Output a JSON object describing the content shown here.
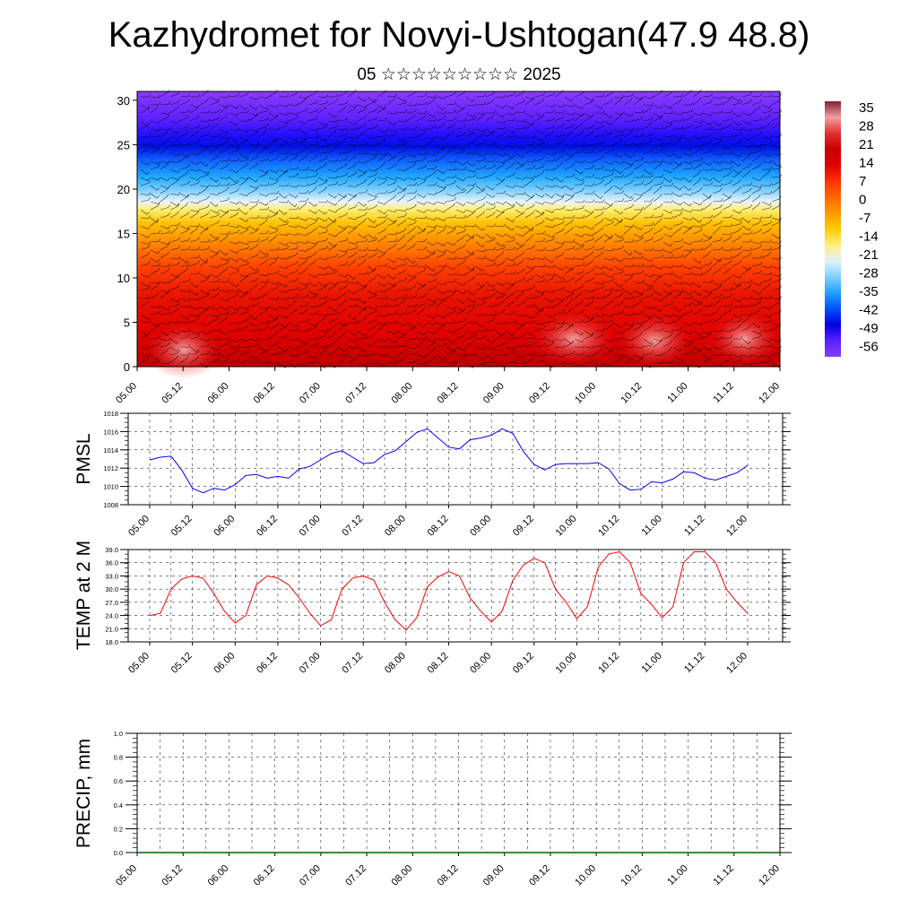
{
  "title": "Kazhydromet for Novyi-Ushtogan(47.9 48.8)",
  "subtitle": "05 ☆☆☆☆☆☆☆☆☆ 2025",
  "colors": {
    "pmsl_line": "#0000ff",
    "temp_line": "#ff0000",
    "precip_line": "#006400",
    "colorbar": [
      "#7f1f2f",
      "#f2a0a0",
      "#e23030",
      "#c80000",
      "#e00000",
      "#ff3300",
      "#ff6600",
      "#ff9900",
      "#ffcc00",
      "#fff080",
      "#e0f0ff",
      "#80d0ff",
      "#20a0ff",
      "#0050ff",
      "#0000e0",
      "#6020ff",
      "#8040ff"
    ]
  },
  "x_ticks": [
    "05.00",
    "05.12",
    "06.00",
    "06.12",
    "07.00",
    "07.12",
    "08.00",
    "08.12",
    "09.00",
    "09.12",
    "10.00",
    "10.12",
    "11.00",
    "11.12",
    "12.00"
  ],
  "chart_data": [
    {
      "type": "heatmap",
      "title": "",
      "xlabel": "",
      "ylabel": "",
      "xlim": [
        "05.00",
        "12.00"
      ],
      "ylim": [
        0,
        31
      ],
      "yticks": [
        0,
        5,
        10,
        15,
        20,
        25,
        30
      ],
      "colorbar_labels": [
        "35",
        "28",
        "21",
        "14",
        "7",
        "0",
        "-7",
        "-14",
        "-21",
        "-28",
        "-35",
        "-42",
        "-49",
        "-56"
      ],
      "layers": [
        {
          "level_range": [
            0,
            3
          ],
          "value": 30
        },
        {
          "level_range": [
            3,
            8
          ],
          "value": 24
        },
        {
          "level_range": [
            8,
            12
          ],
          "value": 17
        },
        {
          "level_range": [
            12,
            15
          ],
          "value": 5
        },
        {
          "level_range": [
            15,
            18
          ],
          "value": -8
        },
        {
          "level_range": [
            18,
            22
          ],
          "value": -28
        },
        {
          "level_range": [
            22,
            27
          ],
          "value": -54
        },
        {
          "level_range": [
            27,
            31
          ],
          "value": -60
        }
      ]
    },
    {
      "type": "line",
      "ylabel": "PMSL",
      "ylim": [
        1008,
        1018
      ],
      "yticks": [
        "1018",
        "1016",
        "1014",
        "1012",
        "1010",
        "1008"
      ],
      "grid": true,
      "x": [
        0,
        3,
        6,
        9,
        12,
        15,
        18,
        21,
        24,
        27,
        30,
        33,
        36,
        39,
        42,
        45,
        48,
        51,
        54,
        57,
        60,
        63,
        66,
        69,
        72,
        75,
        78,
        81,
        84,
        87,
        90,
        93,
        96,
        99,
        102,
        105,
        108,
        111,
        114,
        117,
        120,
        123,
        126,
        129,
        132,
        135,
        138,
        141,
        144,
        147,
        150,
        153,
        156,
        159,
        162,
        165,
        168
      ],
      "series": [
        {
          "values": [
            1012.9,
            1013.2,
            1013.3,
            1011.8,
            1009.8,
            1009.3,
            1009.8,
            1009.6,
            1010.2,
            1011.2,
            1011.3,
            1010.9,
            1011.1,
            1010.9,
            1011.9,
            1012.2,
            1012.9,
            1013.6,
            1013.9,
            1013.2,
            1012.5,
            1012.6,
            1013.5,
            1013.9,
            1014.9,
            1015.9,
            1016.3,
            1015.3,
            1014.3,
            1014.1,
            1015.1,
            1015.3,
            1015.6,
            1016.3,
            1015.8,
            1013.8,
            1012.4,
            1011.8,
            1012.4,
            1012.5,
            1012.5,
            1012.5,
            1012.6,
            1011.9,
            1010.3,
            1009.6,
            1009.7,
            1010.5,
            1010.4,
            1010.8,
            1011.6,
            1011.5,
            1010.9,
            1010.7,
            1011.1,
            1011.5,
            1012.3
          ]
        }
      ]
    },
    {
      "type": "line",
      "ylabel": "TEMP at 2 M",
      "ylim": [
        18,
        39
      ],
      "yticks": [
        "39.0",
        "36.0",
        "33.0",
        "30.0",
        "27.0",
        "24.0",
        "21.0",
        "18.0"
      ],
      "grid": true,
      "x": [
        0,
        3,
        6,
        9,
        12,
        15,
        18,
        21,
        24,
        27,
        30,
        33,
        36,
        39,
        42,
        45,
        48,
        51,
        54,
        57,
        60,
        63,
        66,
        69,
        72,
        75,
        78,
        81,
        84,
        87,
        90,
        93,
        96,
        99,
        102,
        105,
        108,
        111,
        114,
        117,
        120,
        123,
        126,
        129,
        132,
        135,
        138,
        141,
        144,
        147,
        150,
        153,
        156,
        159,
        162,
        165,
        168
      ],
      "series": [
        {
          "values": [
            24.0,
            24.5,
            30.0,
            32.3,
            33.0,
            32.5,
            29.0,
            25.0,
            22.3,
            24.0,
            31.0,
            33.0,
            32.5,
            31.0,
            28.0,
            24.5,
            21.7,
            23.0,
            30.0,
            32.5,
            33.0,
            32.0,
            27.0,
            23.0,
            20.7,
            23.5,
            30.5,
            32.8,
            34.0,
            33.0,
            28.0,
            25.0,
            22.5,
            25.0,
            32.0,
            35.5,
            37.0,
            36.0,
            30.0,
            27.0,
            23.3,
            26.0,
            35.0,
            38.0,
            38.5,
            36.0,
            29.0,
            26.5,
            23.5,
            26.0,
            36.0,
            38.5,
            38.5,
            36.0,
            30.0,
            27.0,
            24.5
          ]
        }
      ]
    },
    {
      "type": "line",
      "ylabel": "PRECIP, mm",
      "ylim": [
        0,
        1
      ],
      "yticks": [
        "1.0",
        "0.8",
        "0.6",
        "0.4",
        "0.2",
        "0.0"
      ],
      "grid": true,
      "series": [
        {
          "values": [
            0,
            0
          ]
        }
      ]
    }
  ]
}
